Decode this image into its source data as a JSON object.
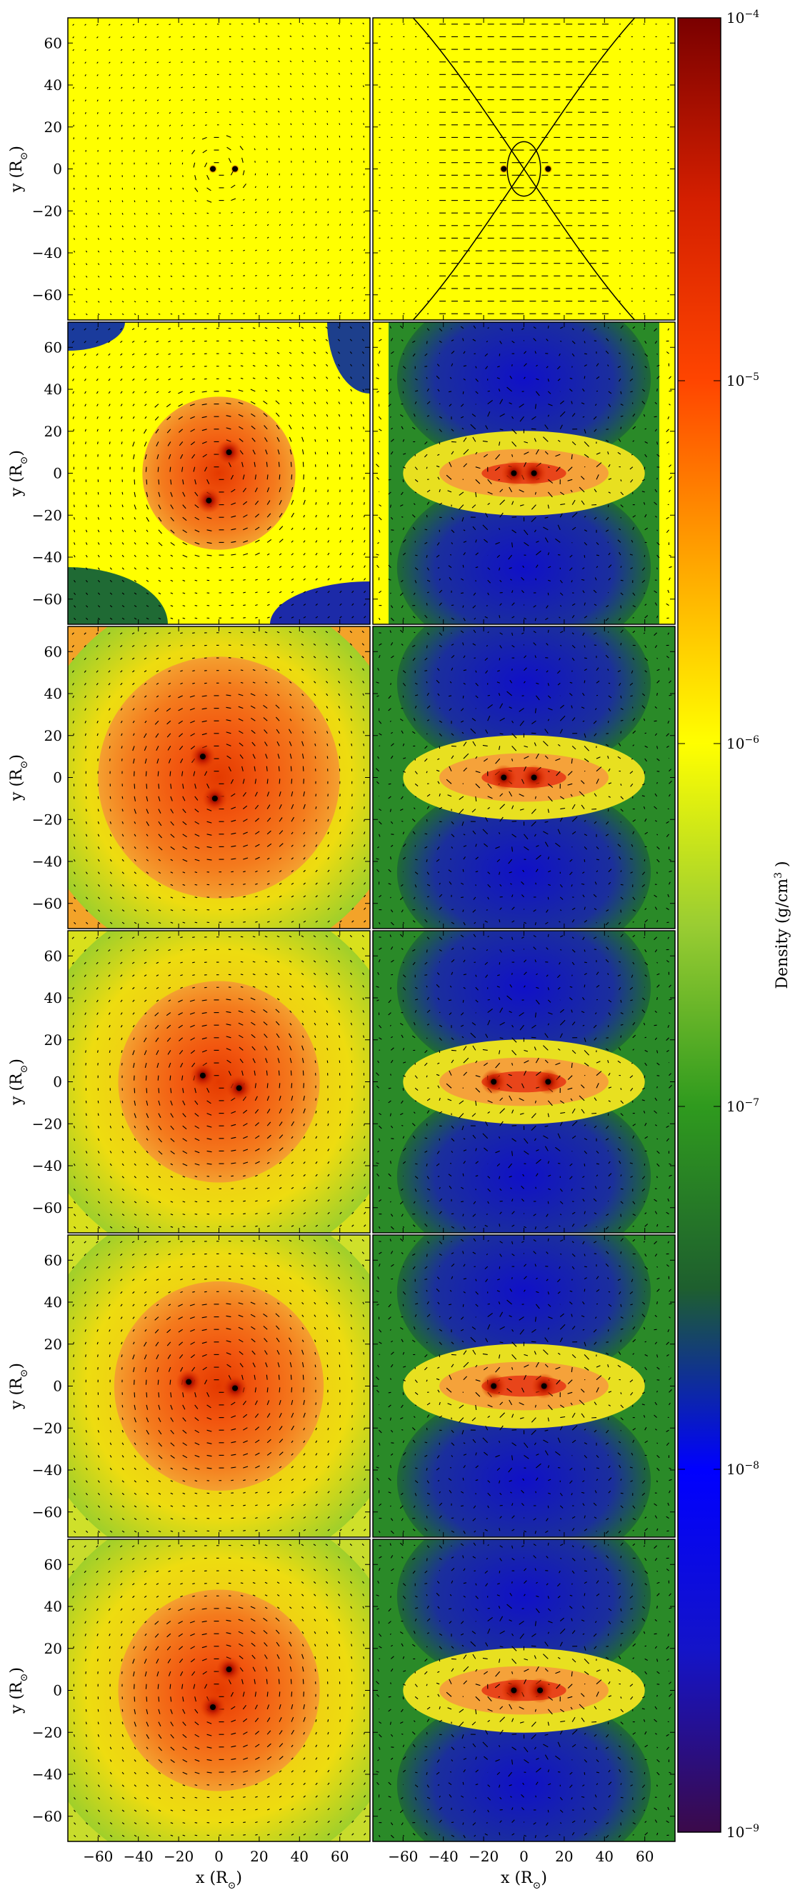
{
  "chart_data": {
    "type": "heatmap",
    "description_free": true,
    "grid": {
      "rows": 6,
      "cols": 2
    },
    "x_axis": {
      "label": "x  (R",
      "label_sub": "⊙",
      "label_close": ")",
      "range": [
        -75,
        75
      ],
      "ticks": [
        -60,
        -40,
        -20,
        0,
        20,
        40,
        60
      ]
    },
    "y_axis": {
      "label": "y  (R",
      "label_sub": "⊙",
      "label_close": ")",
      "range": [
        -72,
        72
      ],
      "ticks": [
        60,
        40,
        20,
        0,
        -20,
        -40,
        -60
      ]
    },
    "colorbar": {
      "label": "Density  (g/cm",
      "label_sup": "3",
      "label_close": " )",
      "scale": "log",
      "range": [
        1e-09,
        0.0001
      ],
      "ticks": [
        {
          "base": "10",
          "exp": "-4",
          "value": 0.0001
        },
        {
          "base": "10",
          "exp": "-5",
          "value": 1e-05
        },
        {
          "base": "10",
          "exp": "-6",
          "value": 1e-06
        },
        {
          "base": "10",
          "exp": "-7",
          "value": 1e-07
        },
        {
          "base": "10",
          "exp": "-8",
          "value": 1e-08
        },
        {
          "base": "10",
          "exp": "-9",
          "value": 1e-09
        }
      ],
      "colors": [
        "#3b0a4a",
        "#1414c8",
        "#0000ff",
        "#1e5f2e",
        "#2f9a1e",
        "#9acd32",
        "#ffff00",
        "#ffa500",
        "#ff4500",
        "#d41f00",
        "#7a0000"
      ]
    },
    "panels": [
      {
        "row": 0,
        "col": 0,
        "view": "orbital plane",
        "background": "#ffff00",
        "stars": [
          [
            -3,
            0
          ],
          [
            8,
            0
          ]
        ],
        "envelope_radius": 0,
        "lobes": false
      },
      {
        "row": 0,
        "col": 1,
        "view": "meridional plane",
        "background": "#ffff00",
        "stars": [
          [
            -10,
            0
          ],
          [
            12,
            0
          ]
        ],
        "roche_curves": true
      },
      {
        "row": 1,
        "col": 0,
        "view": "orbital plane",
        "stars": [
          [
            5,
            10
          ],
          [
            -5,
            -13
          ]
        ],
        "envelope_radius": 38
      },
      {
        "row": 1,
        "col": 1,
        "view": "meridional plane",
        "stars": [
          [
            -5,
            0
          ],
          [
            5,
            0
          ]
        ],
        "lobes": true
      },
      {
        "row": 2,
        "col": 0,
        "view": "orbital plane",
        "stars": [
          [
            -8,
            10
          ],
          [
            -2,
            -10
          ]
        ],
        "envelope_radius": 60
      },
      {
        "row": 2,
        "col": 1,
        "view": "meridional plane",
        "stars": [
          [
            -10,
            0
          ],
          [
            5,
            0
          ]
        ],
        "lobes": true
      },
      {
        "row": 3,
        "col": 0,
        "view": "orbital plane",
        "stars": [
          [
            -8,
            3
          ],
          [
            10,
            -3
          ]
        ],
        "envelope_radius": 50
      },
      {
        "row": 3,
        "col": 1,
        "view": "meridional plane",
        "stars": [
          [
            -15,
            0
          ],
          [
            12,
            0
          ]
        ],
        "lobes": true
      },
      {
        "row": 4,
        "col": 0,
        "view": "orbital plane",
        "stars": [
          [
            -15,
            2
          ],
          [
            8,
            -1
          ]
        ],
        "envelope_radius": 52
      },
      {
        "row": 4,
        "col": 1,
        "view": "meridional plane",
        "stars": [
          [
            -15,
            0
          ],
          [
            10,
            0
          ]
        ],
        "lobes": true
      },
      {
        "row": 5,
        "col": 0,
        "view": "orbital plane",
        "stars": [
          [
            5,
            10
          ],
          [
            -3,
            -8
          ]
        ],
        "envelope_radius": 50
      },
      {
        "row": 5,
        "col": 1,
        "view": "meridional plane",
        "stars": [
          [
            -5,
            0
          ],
          [
            8,
            0
          ]
        ],
        "lobes": true
      }
    ]
  }
}
